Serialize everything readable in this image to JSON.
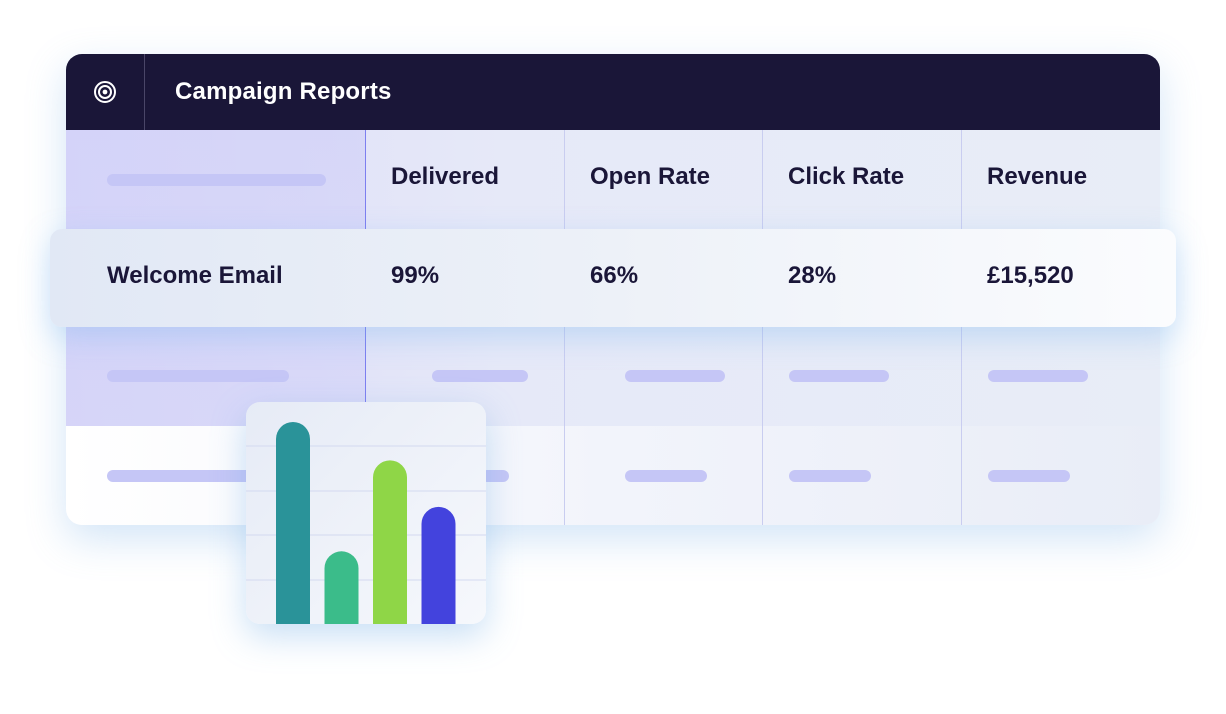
{
  "window": {
    "title": "Campaign Reports",
    "icon": "target-icon"
  },
  "table": {
    "columns": [
      "Delivered",
      "Open Rate",
      "Click Rate",
      "Revenue"
    ],
    "highlight_row": {
      "name": "Welcome Email",
      "values": [
        "99%",
        "66%",
        "28%",
        "£15,520"
      ]
    }
  },
  "colors": {
    "titlebar": "#1a1638",
    "text": "#1a1638",
    "placeholder_pill": "#c5c6f6",
    "accent_line": "#7d7ff0"
  },
  "chart_data": {
    "type": "bar",
    "categories": [
      "",
      "",
      "",
      ""
    ],
    "values": [
      100,
      36,
      81,
      58
    ],
    "ylim": [
      0,
      100
    ],
    "colors": [
      "#2a9399",
      "#3bbc8a",
      "#8fd647",
      "#4343dd"
    ],
    "grid": true,
    "title": "",
    "xlabel": "",
    "ylabel": ""
  }
}
